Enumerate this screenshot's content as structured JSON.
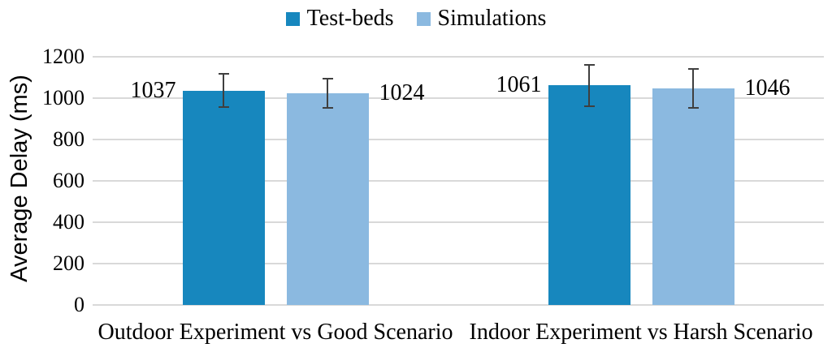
{
  "figure": {
    "background": "#ffffff",
    "text_color": "#000000"
  },
  "chart_data": {
    "type": "bar",
    "title": "",
    "categories": [
      "Outdoor Experiment vs Good Scenario",
      "Indoor Experiment vs Harsh Scenario"
    ],
    "series": [
      {
        "name": "Test-beds",
        "color": "#1787be",
        "values": [
          1037,
          1061
        ],
        "error_plus_minus": [
          80,
          100
        ],
        "data_label_side": "left"
      },
      {
        "name": "Simulations",
        "color": "#8bb9e0",
        "values": [
          1024,
          1046
        ],
        "error_plus_minus": [
          72,
          95
        ],
        "data_label_side": "right"
      }
    ],
    "data_labels_shown": true,
    "xlabel": "",
    "ylabel": "Average Delay (ms)",
    "ylim": [
      0,
      1200
    ],
    "yticks": [
      0,
      200,
      400,
      600,
      800,
      1000,
      1200
    ],
    "grid": "horizontal",
    "gridline_color": "#d9d9d9",
    "error_bar_color": "#3f3f3f",
    "legend_position": "top"
  }
}
